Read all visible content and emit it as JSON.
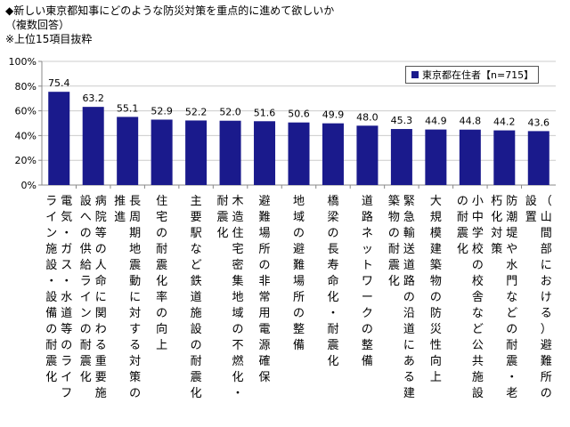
{
  "header": {
    "line1": "◆新しい東京都知事にどのような防災対策を重点的に進めて欲しいか",
    "line2": "（複数回答）",
    "line3": "※上位15項目抜粋"
  },
  "colors": {
    "bar": "#1a1a8c",
    "axis": "#888888",
    "grid": "#cccccc"
  },
  "chart_data": {
    "type": "bar",
    "title": "◆新しい東京都知事にどのような防災対策を重点的に進めて欲しいか",
    "ylim": [
      0,
      100
    ],
    "yticks": [
      "0%",
      "20%",
      "40%",
      "60%",
      "80%",
      "100%"
    ],
    "grid": true,
    "legend_position": "top-right",
    "categories": [
      "電気・ガス・水道等のライフライン施設・設備の耐震化",
      "病院等の人命に関わる重要施設への供給ラインの耐震化",
      "長周期地震動に対する対策の推進",
      "住宅の耐震化率の向上",
      "主要駅など鉄道施設の耐震化",
      "木造住宅密集地域の不燃化・耐震化",
      "避難場所の非常用電源確保",
      "地域の避難場所の整備",
      "橋梁の長寿命化・耐震化",
      "道路ネットワークの整備",
      "緊急輸送道路の沿道にある建築物の耐震化",
      "大規模建築物の防災性向上",
      "小中学校の校舎など公共施設の耐震化",
      "防潮堤や水門などの耐震・老朽化対策",
      "（山間部における）避難所の設置"
    ],
    "series": [
      {
        "name": "東京都在住者【n=715】",
        "values": [
          75.4,
          63.2,
          55.1,
          52.9,
          52.2,
          52.0,
          51.6,
          50.6,
          49.9,
          48.0,
          45.3,
          44.9,
          44.8,
          44.2,
          43.6
        ]
      }
    ]
  }
}
